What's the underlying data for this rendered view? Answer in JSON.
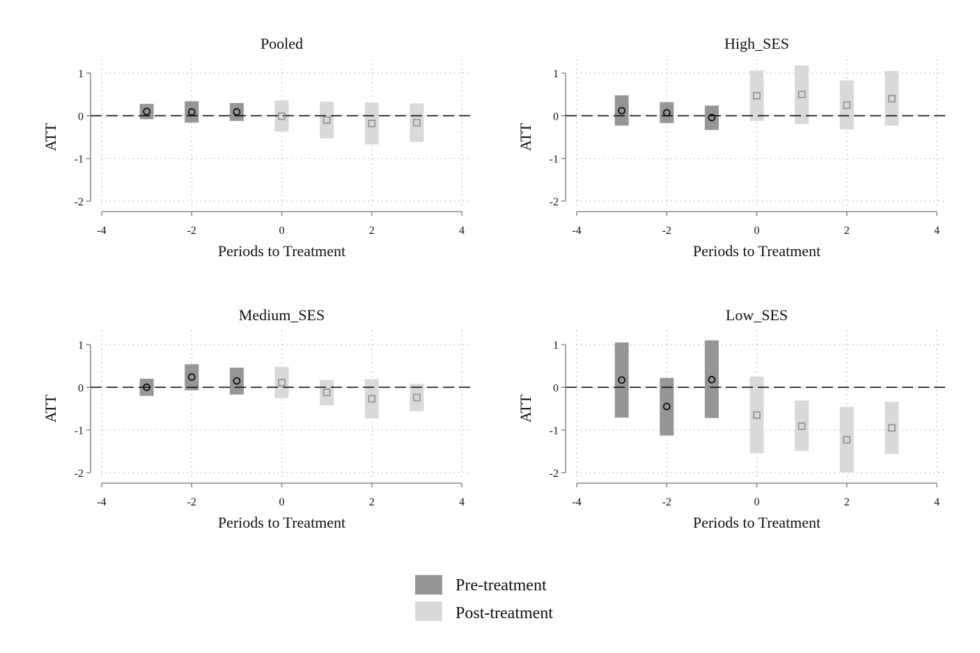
{
  "colors": {
    "pre_band": "#969696",
    "post_band": "#d9d9d9",
    "pre_marker": "#111111",
    "post_marker": "#969696",
    "axis": "#888888",
    "grid": "#b4b4b4",
    "zero_line": "#111111"
  },
  "legend": {
    "pre_label": "Pre-treatment",
    "post_label": "Post-treatment"
  },
  "chart_data": [
    {
      "type": "scatter",
      "title": "Pooled",
      "xlabel": "Periods to Treatment",
      "ylabel": "ATT",
      "xlim": [
        -4,
        4
      ],
      "ylim": [
        -2,
        1
      ],
      "xticks": [
        -4,
        -2,
        0,
        2,
        4
      ],
      "yticks": [
        1,
        0,
        -1,
        -2
      ],
      "grid": true,
      "reference_line_y": 0,
      "series": [
        {
          "name": "Pre-treatment",
          "marker": "circle",
          "points": [
            {
              "x": -3,
              "y": 0.1,
              "lo": -0.08,
              "hi": 0.28
            },
            {
              "x": -2,
              "y": 0.09,
              "lo": -0.16,
              "hi": 0.34
            },
            {
              "x": -1,
              "y": 0.09,
              "lo": -0.12,
              "hi": 0.3
            }
          ]
        },
        {
          "name": "Post-treatment",
          "marker": "square",
          "points": [
            {
              "x": 0,
              "y": -0.01,
              "lo": -0.37,
              "hi": 0.36
            },
            {
              "x": 1,
              "y": -0.1,
              "lo": -0.53,
              "hi": 0.33
            },
            {
              "x": 2,
              "y": -0.18,
              "lo": -0.67,
              "hi": 0.31
            },
            {
              "x": 3,
              "y": -0.16,
              "lo": -0.61,
              "hi": 0.29
            }
          ]
        }
      ]
    },
    {
      "type": "scatter",
      "title": "High_SES",
      "xlabel": "Periods to Treatment",
      "ylabel": "ATT",
      "xlim": [
        -4,
        4
      ],
      "ylim": [
        -2,
        1
      ],
      "xticks": [
        -4,
        -2,
        0,
        2,
        4
      ],
      "yticks": [
        1,
        0,
        -1,
        -2
      ],
      "grid": true,
      "reference_line_y": 0,
      "series": [
        {
          "name": "Pre-treatment",
          "marker": "circle",
          "points": [
            {
              "x": -3,
              "y": 0.12,
              "lo": -0.23,
              "hi": 0.48
            },
            {
              "x": -2,
              "y": 0.07,
              "lo": -0.17,
              "hi": 0.32
            },
            {
              "x": -1,
              "y": -0.04,
              "lo": -0.33,
              "hi": 0.24
            }
          ]
        },
        {
          "name": "Post-treatment",
          "marker": "square",
          "points": [
            {
              "x": 0,
              "y": 0.47,
              "lo": -0.12,
              "hi": 1.06
            },
            {
              "x": 1,
              "y": 0.5,
              "lo": -0.19,
              "hi": 1.18
            },
            {
              "x": 2,
              "y": 0.25,
              "lo": -0.32,
              "hi": 0.83
            },
            {
              "x": 3,
              "y": 0.4,
              "lo": -0.23,
              "hi": 1.05
            }
          ]
        }
      ]
    },
    {
      "type": "scatter",
      "title": "Medium_SES",
      "xlabel": "Periods to Treatment",
      "ylabel": "ATT",
      "xlim": [
        -4,
        4
      ],
      "ylim": [
        -2,
        1
      ],
      "xticks": [
        -4,
        -2,
        0,
        2,
        4
      ],
      "yticks": [
        1,
        0,
        -1,
        -2
      ],
      "grid": true,
      "reference_line_y": 0,
      "series": [
        {
          "name": "Pre-treatment",
          "marker": "circle",
          "points": [
            {
              "x": -3,
              "y": 0.0,
              "lo": -0.2,
              "hi": 0.2
            },
            {
              "x": -2,
              "y": 0.24,
              "lo": -0.07,
              "hi": 0.54
            },
            {
              "x": -1,
              "y": 0.15,
              "lo": -0.17,
              "hi": 0.46
            }
          ]
        },
        {
          "name": "Post-treatment",
          "marker": "square",
          "points": [
            {
              "x": 0,
              "y": 0.11,
              "lo": -0.25,
              "hi": 0.48
            },
            {
              "x": 1,
              "y": -0.12,
              "lo": -0.42,
              "hi": 0.17
            },
            {
              "x": 2,
              "y": -0.27,
              "lo": -0.73,
              "hi": 0.19
            },
            {
              "x": 3,
              "y": -0.24,
              "lo": -0.56,
              "hi": 0.08
            }
          ]
        }
      ]
    },
    {
      "type": "scatter",
      "title": "Low_SES",
      "xlabel": "Periods to Treatment",
      "ylabel": "ATT",
      "xlim": [
        -4,
        4
      ],
      "ylim": [
        -2,
        1
      ],
      "xticks": [
        -4,
        -2,
        0,
        2,
        4
      ],
      "yticks": [
        1,
        0,
        -1,
        -2
      ],
      "grid": true,
      "reference_line_y": 0,
      "series": [
        {
          "name": "Pre-treatment",
          "marker": "circle",
          "points": [
            {
              "x": -3,
              "y": 0.17,
              "lo": -0.71,
              "hi": 1.05
            },
            {
              "x": -2,
              "y": -0.45,
              "lo": -1.13,
              "hi": 0.22
            },
            {
              "x": -1,
              "y": 0.18,
              "lo": -0.72,
              "hi": 1.1
            }
          ]
        },
        {
          "name": "Post-treatment",
          "marker": "square",
          "points": [
            {
              "x": 0,
              "y": -0.65,
              "lo": -1.54,
              "hi": 0.25
            },
            {
              "x": 1,
              "y": -0.91,
              "lo": -1.49,
              "hi": -0.31
            },
            {
              "x": 2,
              "y": -1.23,
              "lo": -1.99,
              "hi": -0.46
            },
            {
              "x": 3,
              "y": -0.95,
              "lo": -1.56,
              "hi": -0.34
            }
          ]
        }
      ]
    }
  ]
}
